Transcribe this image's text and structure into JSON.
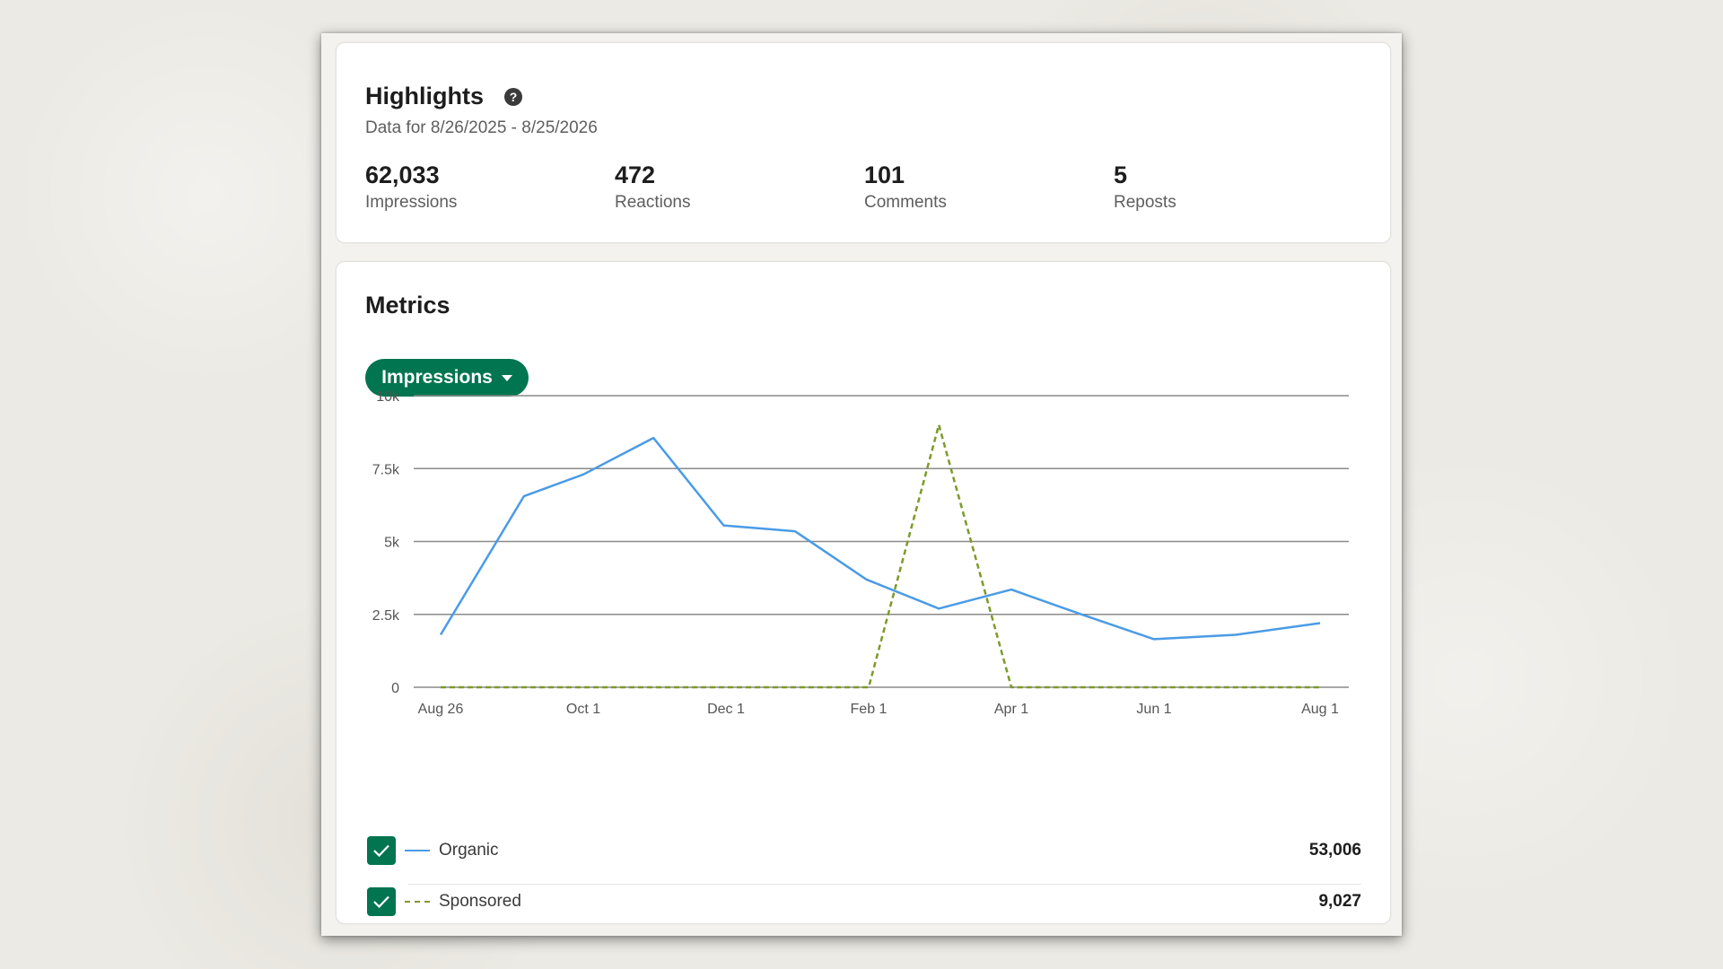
{
  "highlights": {
    "title": "Highlights",
    "date_range": "Data for 8/26/2025 - 8/25/2026",
    "stats": [
      {
        "value": "62,033",
        "label": "Impressions"
      },
      {
        "value": "472",
        "label": "Reactions"
      },
      {
        "value": "101",
        "label": "Comments"
      },
      {
        "value": "5",
        "label": "Reposts"
      }
    ]
  },
  "metrics": {
    "title": "Metrics",
    "selector_label": "Impressions",
    "legend": [
      {
        "name": "Organic",
        "total": "53,006",
        "checked": true,
        "color": "#4a9be6"
      },
      {
        "name": "Sponsored",
        "total": "9,027",
        "checked": true,
        "color": "#7c9a28"
      }
    ]
  },
  "colors": {
    "accent": "#01754f",
    "organic": "#4a9be6",
    "sponsored": "#7c9a28"
  },
  "chart_data": {
    "type": "line",
    "x_tick_labels": [
      "Aug 26",
      "Oct 1",
      "Dec 1",
      "Feb 1",
      "Apr 1",
      "Jun 1",
      "Aug 1"
    ],
    "y_tick_labels": [
      "0",
      "2.5k",
      "5k",
      "7.5k",
      "10k"
    ],
    "y_ticks": [
      0,
      2500,
      5000,
      7500,
      10000
    ],
    "ylim": [
      0,
      10000
    ],
    "x": [
      "2025-08-26",
      "2025-09-16",
      "2025-10-01",
      "2025-10-16",
      "2025-11-01",
      "2025-11-16",
      "2025-12-01",
      "2025-12-16",
      "2026-01-01",
      "2026-01-16",
      "2026-02-01",
      "2026-02-16",
      "2026-03-01",
      "2026-03-16",
      "2026-04-01",
      "2026-04-16",
      "2026-05-01",
      "2026-05-16",
      "2026-06-01",
      "2026-06-16",
      "2026-07-01",
      "2026-07-16",
      "2026-08-01"
    ],
    "series": [
      {
        "name": "Organic",
        "style": "solid",
        "color": "#4a9be6",
        "points": [
          [
            "2025-08-26",
            1800
          ],
          [
            "2025-09-16",
            6550
          ],
          [
            "2025-10-01",
            7300
          ],
          [
            "2025-10-31",
            8550
          ],
          [
            "2025-11-30",
            5550
          ],
          [
            "2025-12-31",
            5350
          ],
          [
            "2026-01-31",
            3700
          ],
          [
            "2026-03-02",
            2700
          ],
          [
            "2026-04-01",
            3350
          ],
          [
            "2026-05-01",
            2500
          ],
          [
            "2026-06-01",
            1650
          ],
          [
            "2026-07-01",
            1800
          ],
          [
            "2026-08-01",
            2200
          ]
        ]
      },
      {
        "name": "Sponsored",
        "style": "dashed",
        "color": "#7c9a28",
        "points": [
          [
            "2025-08-26",
            0
          ],
          [
            "2026-02-01",
            0
          ],
          [
            "2026-03-02",
            9000
          ],
          [
            "2026-04-01",
            0
          ],
          [
            "2026-08-01",
            0
          ]
        ]
      }
    ],
    "grid": true,
    "legend": "bottom"
  }
}
